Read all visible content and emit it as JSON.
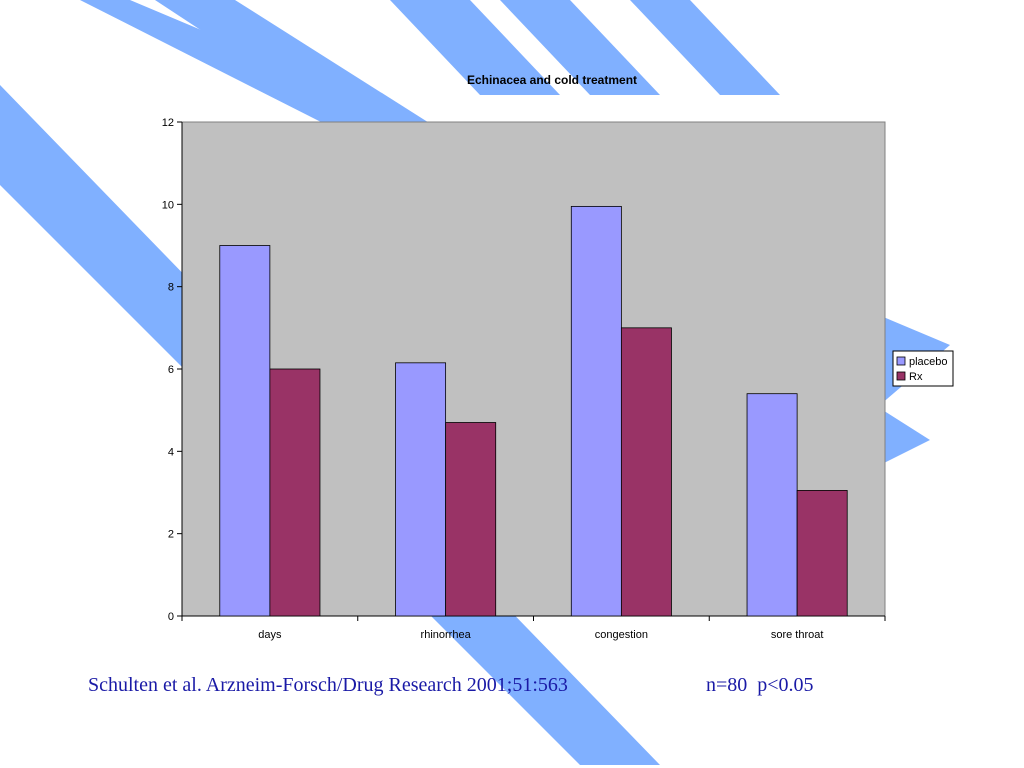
{
  "theme": {
    "stripe_color": "#80b0ff",
    "plot_bg": "#c0c0c0",
    "axis_color": "#808080"
  },
  "chart_data": {
    "type": "bar",
    "title": "Echinacea and cold treatment",
    "xlabel": "",
    "ylabel": "",
    "categories": [
      "days",
      "rhinorrhea",
      "congestion",
      "sore throat"
    ],
    "series": [
      {
        "name": "placebo",
        "color": "#9999ff",
        "values": [
          9,
          6.15,
          9.95,
          5.4
        ]
      },
      {
        "name": "Rx",
        "color": "#993366",
        "values": [
          6,
          4.7,
          7,
          3.05
        ]
      }
    ],
    "ylim": [
      0,
      12
    ],
    "yticks": [
      0,
      2,
      4,
      6,
      8,
      10,
      12
    ],
    "grid": false,
    "legend_position": "right"
  },
  "footer": {
    "citation": "Schulten et al. Arzneim-Forsch/Drug Research 2001;51:563",
    "stats": "n=80  p<0.05"
  }
}
